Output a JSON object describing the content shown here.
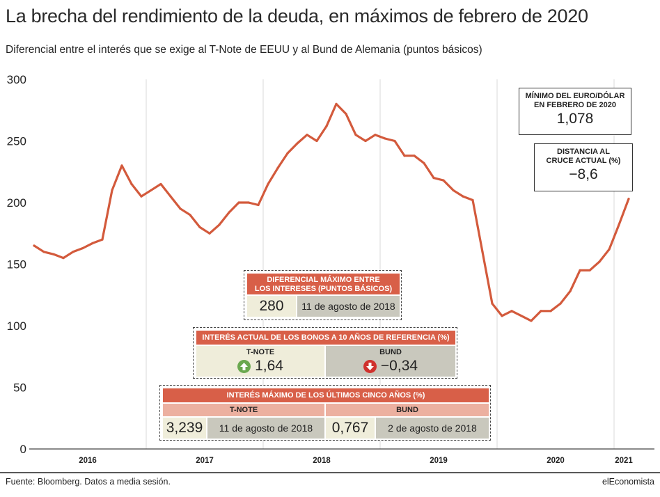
{
  "title": "La brecha del rendimiento de la deuda, en máximos de febrero de 2020",
  "subtitle": "Diferencial entre el interés que se exige al T-Note de EEUU y al Bund de Alemania (puntos básicos)",
  "colors": {
    "line": "#d35a3c",
    "header_red": "#d85f48",
    "header_pink": "#ecb0a0",
    "cell_cream": "#efedda",
    "cell_grey": "#c9c8bd",
    "up_green": "#6aa84f",
    "down_red": "#d0312d"
  },
  "chart_data": {
    "type": "line",
    "title": "",
    "xlabel": "",
    "ylabel": "",
    "ylim": [
      0,
      300
    ],
    "yticks": [
      0,
      50,
      100,
      150,
      200,
      250,
      300
    ],
    "x_tick_labels": [
      "2016",
      "2017",
      "2018",
      "2019",
      "2020",
      "2021"
    ],
    "x_range": [
      "2016-01",
      "2021-02"
    ],
    "grid": "vertical year separators",
    "legend": "none",
    "series": [
      {
        "name": "",
        "x": [
          "2016-01",
          "2016-02",
          "2016-03",
          "2016-04",
          "2016-05",
          "2016-06",
          "2016-07",
          "2016-08",
          "2016-09",
          "2016-10",
          "2016-11",
          "2016-12",
          "2017-01",
          "2017-02",
          "2017-03",
          "2017-04",
          "2017-05",
          "2017-06",
          "2017-07",
          "2017-08",
          "2017-09",
          "2017-10",
          "2017-11",
          "2017-12",
          "2018-01",
          "2018-02",
          "2018-03",
          "2018-04",
          "2018-05",
          "2018-06",
          "2018-07",
          "2018-08",
          "2018-09",
          "2018-10",
          "2018-11",
          "2018-12",
          "2019-01",
          "2019-02",
          "2019-03",
          "2019-04",
          "2019-05",
          "2019-06",
          "2019-07",
          "2019-08",
          "2019-09",
          "2019-10",
          "2019-11",
          "2019-12",
          "2020-01",
          "2020-02",
          "2020-03",
          "2020-04",
          "2020-05",
          "2020-06",
          "2020-07",
          "2020-08",
          "2020-09",
          "2020-10",
          "2020-11",
          "2020-12",
          "2021-01",
          "2021-02"
        ],
        "values": [
          165,
          160,
          158,
          155,
          160,
          163,
          167,
          170,
          210,
          230,
          215,
          205,
          210,
          215,
          205,
          195,
          190,
          180,
          175,
          182,
          192,
          200,
          200,
          198,
          215,
          228,
          240,
          248,
          255,
          250,
          262,
          280,
          272,
          255,
          250,
          255,
          252,
          250,
          238,
          238,
          232,
          220,
          218,
          210,
          205,
          202,
          160,
          118,
          108,
          112,
          108,
          104,
          112,
          112,
          118,
          128,
          145,
          145,
          152,
          162,
          182,
          203
        ]
      }
    ]
  },
  "box_min_euro": {
    "title_l1": "MÍNIMO DEL EURO/DÓLAR",
    "title_l2": "EN FEBRERO DE 2020",
    "value": "1,078"
  },
  "box_distance": {
    "title_l1": "DISTANCIA AL",
    "title_l2": "CRUCE ACTUAL (%)",
    "value": "−8,6"
  },
  "box_max_diff": {
    "title_l1": "DIFERENCIAL MÁXIMO ENTRE",
    "title_l2": "LOS INTERESES (PUNTOS BÁSICOS)",
    "value": "280",
    "date": "11 de agosto de 2018"
  },
  "box_current": {
    "title": "INTERÉS ACTUAL DE LOS BONOS A 10 AÑOS DE REFERENCIA (%)",
    "tnote_label": "T-NOTE",
    "tnote_value": "1,64",
    "bund_label": "BUND",
    "bund_value": "−0,34"
  },
  "box_max5": {
    "title": "INTERÉS MÁXIMO DE LOS ÚLTIMOS CINCO AÑOS (%)",
    "tnote_label": "T-NOTE",
    "tnote_value": "3,239",
    "tnote_date": "11 de agosto de 2018",
    "bund_label": "BUND",
    "bund_value": "0,767",
    "bund_date": "2 de agosto de 2018"
  },
  "footer": {
    "source": "Fuente: Bloomberg. Datos a media sesión.",
    "brand": "elEconomista"
  }
}
